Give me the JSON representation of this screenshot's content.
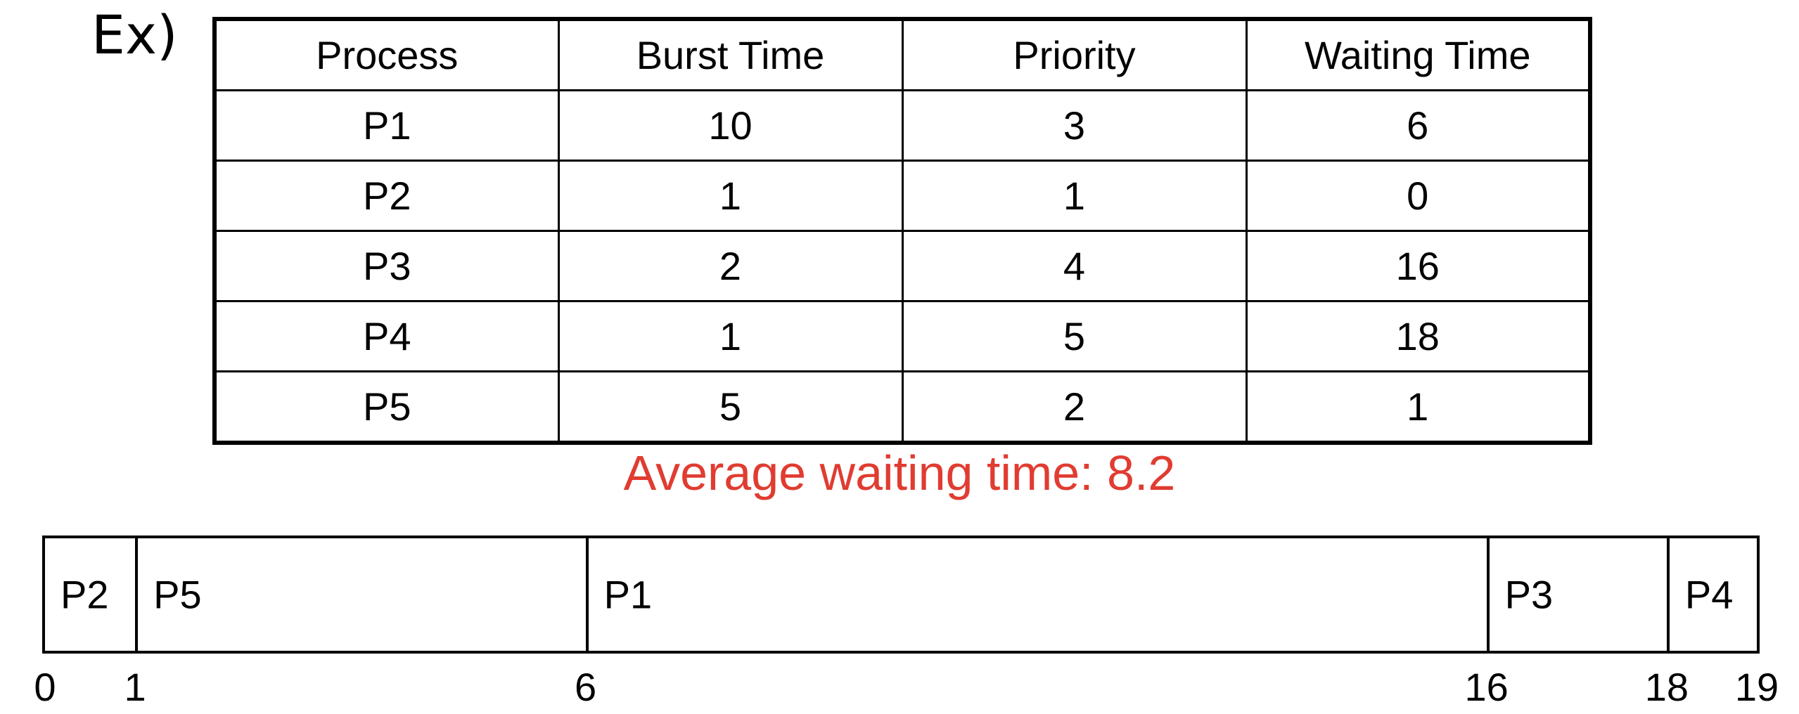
{
  "example_label": "Ex)",
  "table": {
    "headers": [
      "Process",
      "Burst Time",
      "Priority",
      "Waiting Time"
    ],
    "rows": [
      [
        "P1",
        "10",
        "3",
        "6"
      ],
      [
        "P2",
        "1",
        "1",
        "0"
      ],
      [
        "P3",
        "2",
        "4",
        "16"
      ],
      [
        "P4",
        "1",
        "5",
        "18"
      ],
      [
        "P5",
        "5",
        "2",
        "1"
      ]
    ]
  },
  "average": {
    "label": "Average waiting time:",
    "value": "8.2",
    "color": "#e03c31"
  },
  "gantt": {
    "total_time": 19,
    "segments": [
      {
        "process": "P2",
        "start": 0,
        "end": 1
      },
      {
        "process": "P5",
        "start": 1,
        "end": 6
      },
      {
        "process": "P1",
        "start": 6,
        "end": 16
      },
      {
        "process": "P3",
        "start": 16,
        "end": 18
      },
      {
        "process": "P4",
        "start": 18,
        "end": 19
      }
    ],
    "ticks": [
      0,
      1,
      6,
      16,
      18,
      19
    ]
  }
}
